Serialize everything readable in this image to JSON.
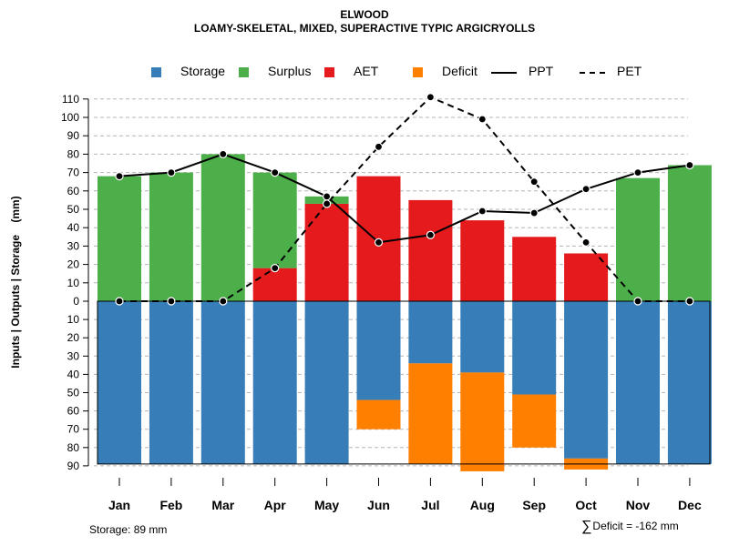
{
  "chart_data": {
    "type": "bar",
    "title": "ELWOOD",
    "subtitle": "LOAMY-SKELETAL, MIXED, SUPERACTIVE TYPIC ARGICRYOLLS",
    "ylabel": "Inputs | Outputs | Storage    (mm)",
    "ylim": [
      -90,
      115
    ],
    "yticks_top": [
      0,
      10,
      20,
      30,
      40,
      50,
      60,
      70,
      80,
      90,
      100,
      110
    ],
    "yticks_bottom": [
      10,
      20,
      30,
      40,
      50,
      60,
      70,
      80,
      90
    ],
    "categories": [
      "Jan",
      "Feb",
      "Mar",
      "Apr",
      "May",
      "Jun",
      "Jul",
      "Aug",
      "Sep",
      "Oct",
      "Nov",
      "Dec"
    ],
    "legend": [
      {
        "name": "Storage",
        "color": "#377EB8",
        "kind": "box"
      },
      {
        "name": "Surplus",
        "color": "#4DAF4A",
        "kind": "box"
      },
      {
        "name": "AET",
        "color": "#E41A1C",
        "kind": "box"
      },
      {
        "name": "Deficit",
        "color": "#FF7F00",
        "kind": "box"
      },
      {
        "name": "PPT",
        "color": "#000000",
        "kind": "solid"
      },
      {
        "name": "PET",
        "color": "#000000",
        "kind": "dashed"
      }
    ],
    "series": [
      {
        "name": "AET",
        "values": [
          0,
          0,
          0,
          18,
          53,
          68,
          55,
          44,
          35,
          26,
          0,
          0
        ]
      },
      {
        "name": "Surplus",
        "values": [
          68,
          70,
          80,
          52,
          4,
          0,
          0,
          0,
          0,
          0,
          67,
          74
        ]
      },
      {
        "name": "Storage",
        "values": [
          89,
          89,
          89,
          89,
          89,
          54,
          34,
          39,
          51,
          86,
          89,
          89
        ]
      },
      {
        "name": "Deficit",
        "values": [
          0,
          0,
          0,
          0,
          0,
          16,
          55,
          54,
          29,
          6,
          0,
          0
        ]
      },
      {
        "name": "PPT",
        "values": [
          68,
          70,
          80,
          70,
          57,
          32,
          36,
          49,
          48,
          61,
          70,
          74
        ]
      },
      {
        "name": "PET",
        "values": [
          0,
          0,
          0,
          18,
          53,
          84,
          111,
          99,
          65,
          32,
          0,
          0
        ]
      }
    ],
    "storage_capacity": 89
  },
  "footer": {
    "storage": "Storage: 89 mm",
    "deficit_symbol": "∑",
    "deficit": "Deficit = -162 mm"
  }
}
